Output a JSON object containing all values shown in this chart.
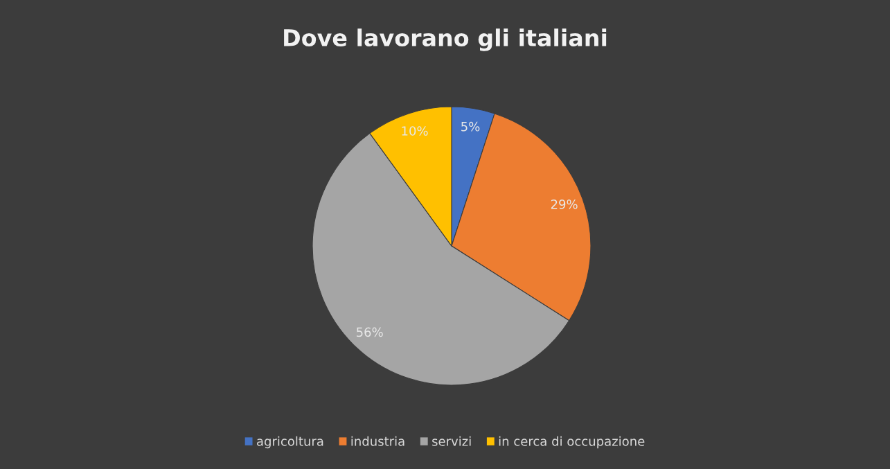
{
  "chart_data": {
    "type": "pie",
    "title": "Dove lavorano gli italiani",
    "categories": [
      "agricoltura",
      "industria",
      "servizi",
      "in cerca di occupazione"
    ],
    "values": [
      5,
      29,
      56,
      10
    ],
    "colors": [
      "#4472c4",
      "#ed7d31",
      "#a5a5a5",
      "#ffc000"
    ],
    "value_labels": [
      "5%",
      "29%",
      "56%",
      "10%"
    ],
    "legend": "bottom"
  }
}
